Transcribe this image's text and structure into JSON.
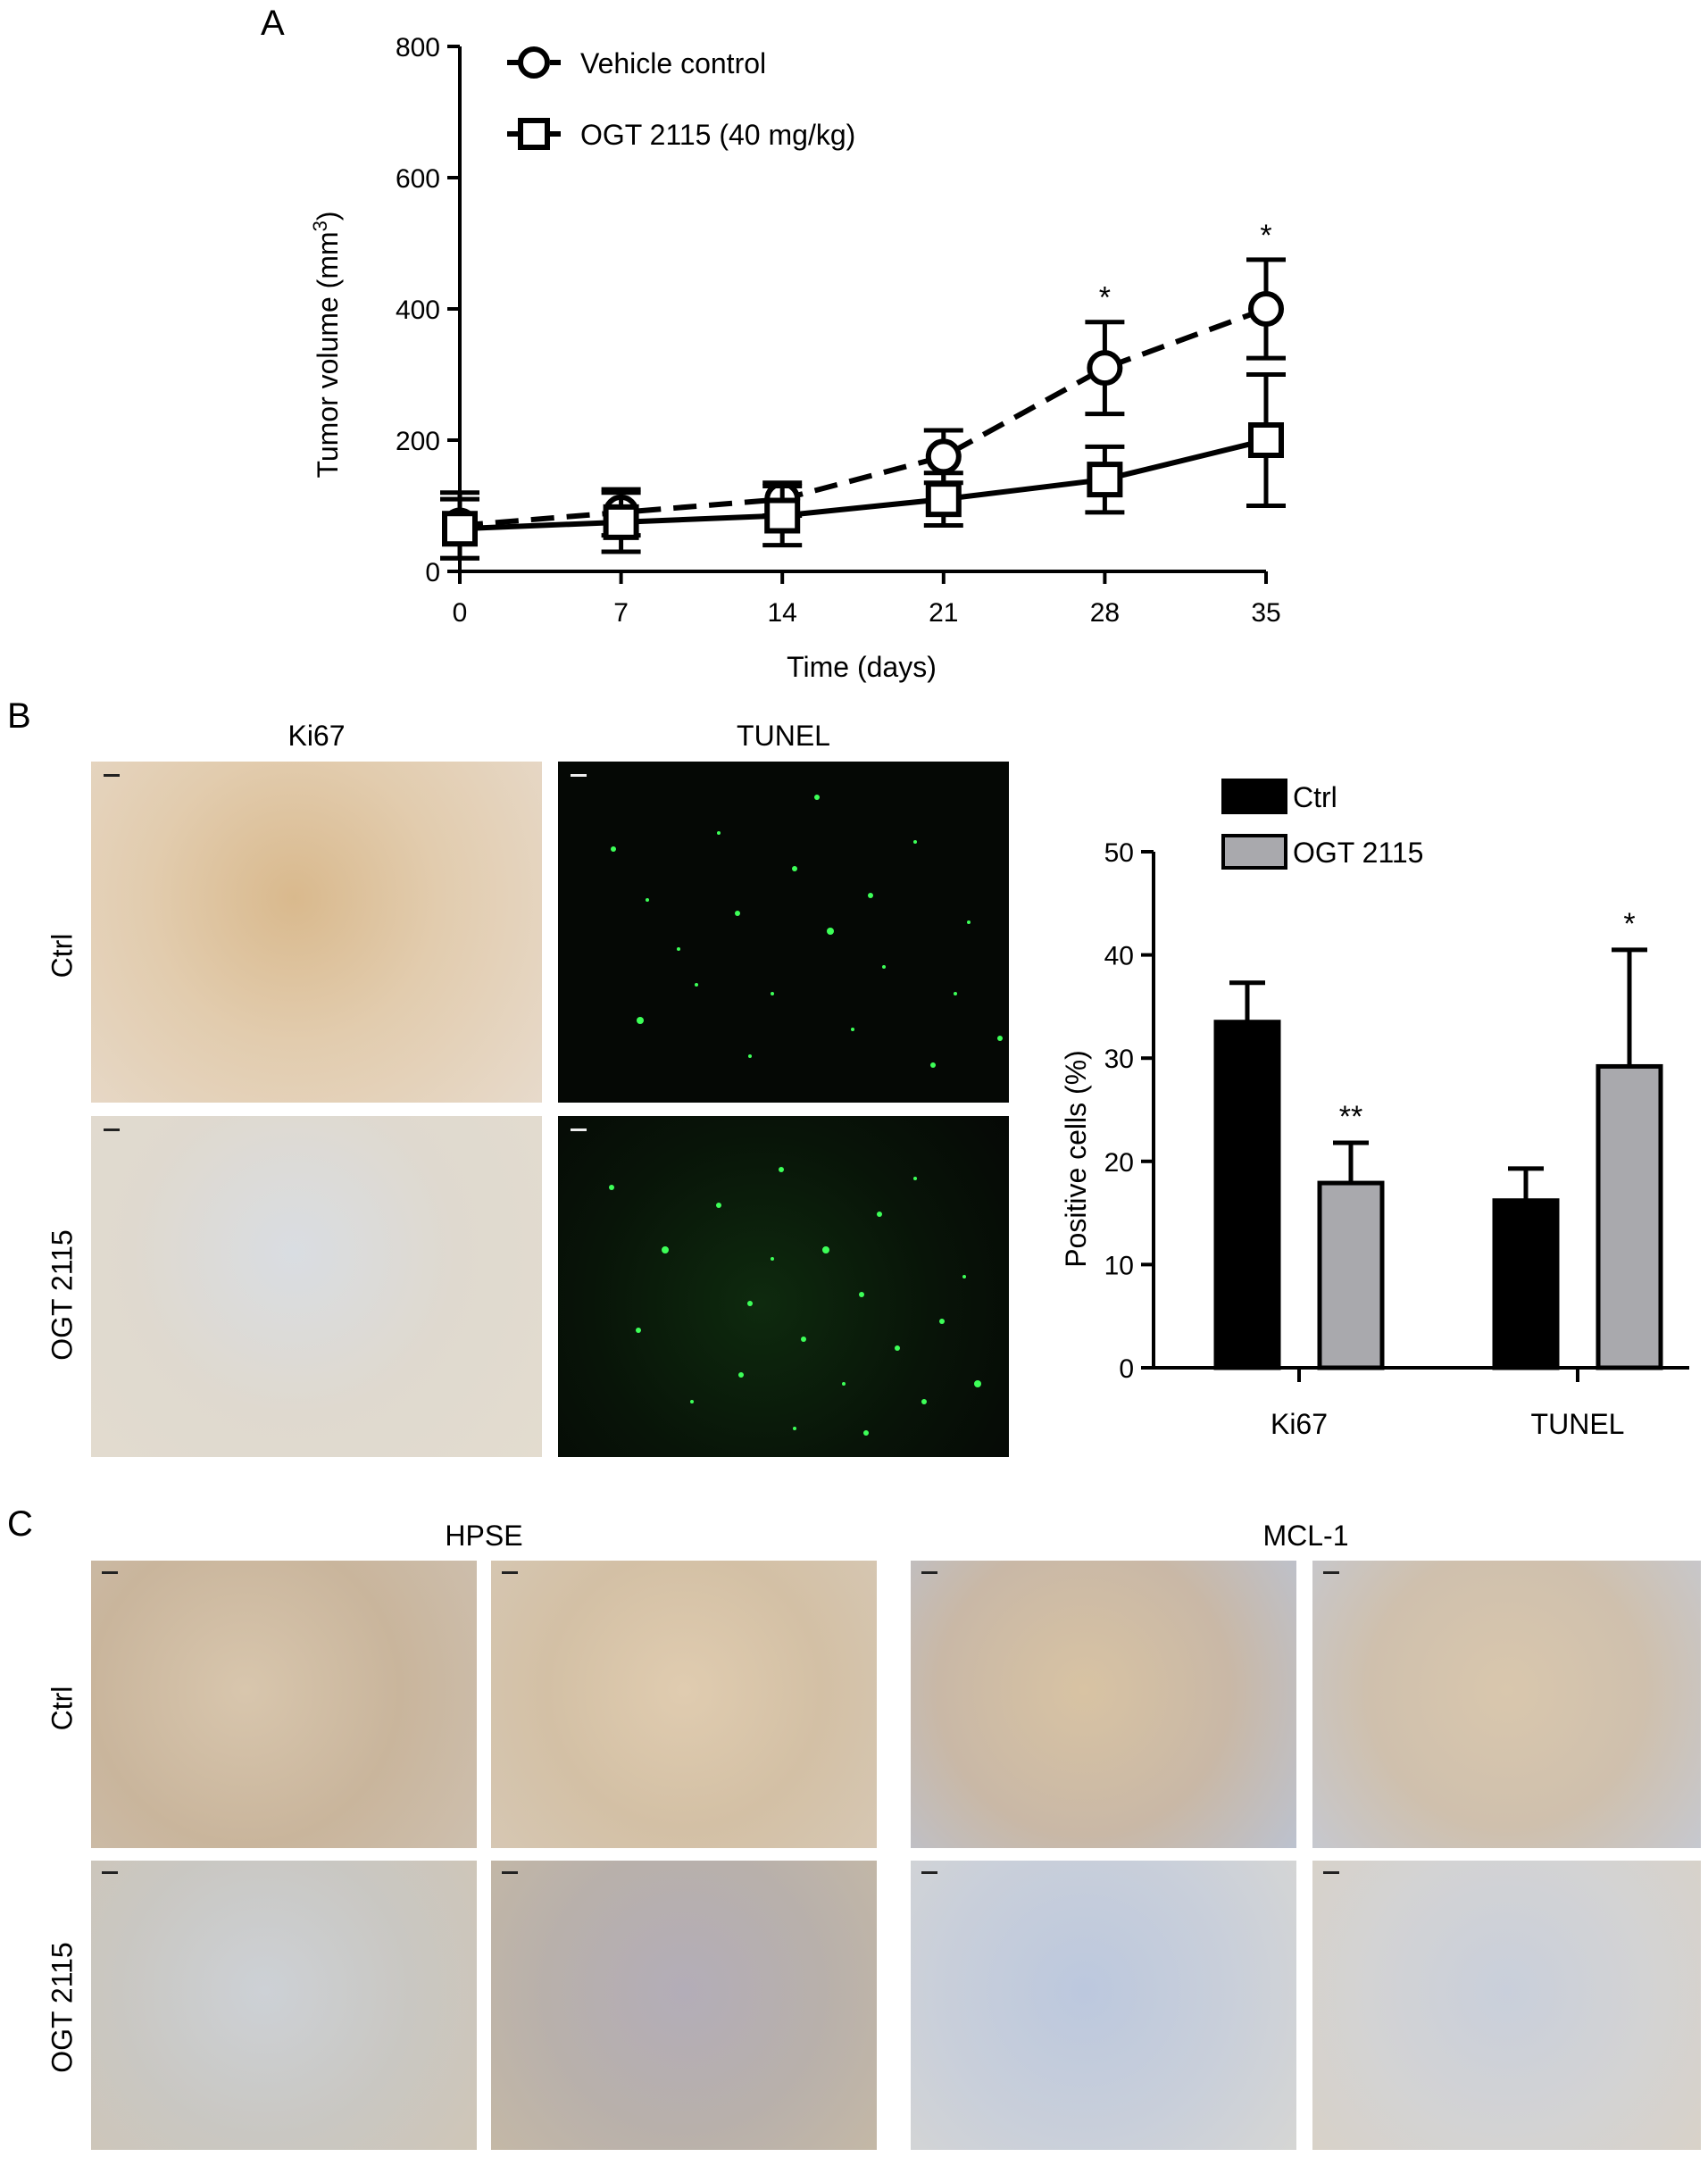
{
  "panels": {
    "a": "A",
    "b": "B",
    "c": "C"
  },
  "chart_data": [
    {
      "type": "line",
      "xlabel": "Time (days)",
      "ylabel": "Tumor volume (mm3)",
      "ylabel_main": "Tumor volume (mm",
      "ylabel_sup": "3",
      "ylabel_close": ")",
      "x": [
        0,
        7,
        14,
        21,
        28,
        35
      ],
      "xlim": [
        0,
        35
      ],
      "ylim": [
        0,
        800
      ],
      "yticks": [
        0,
        200,
        400,
        600,
        800
      ],
      "series": [
        {
          "name": "Vehicle control",
          "marker": "circle",
          "dash": true,
          "values": [
            70,
            90,
            110,
            175,
            310,
            400
          ],
          "err": [
            50,
            35,
            25,
            40,
            70,
            75
          ],
          "significance": [
            "",
            "",
            "",
            "",
            "*",
            "*"
          ]
        },
        {
          "name": "OGT 2115 (40 mg/kg)",
          "marker": "square",
          "dash": false,
          "values": [
            65,
            75,
            85,
            110,
            140,
            200
          ],
          "err": [
            45,
            45,
            45,
            40,
            50,
            100
          ],
          "significance": [
            "",
            "",
            "",
            "",
            "",
            ""
          ]
        }
      ],
      "legend_position": "top-left"
    },
    {
      "type": "bar",
      "ylabel": "Positive cells (%)",
      "categories": [
        "Ki67",
        "TUNEL"
      ],
      "ylim": [
        0,
        50
      ],
      "yticks": [
        0,
        10,
        20,
        30,
        40,
        50
      ],
      "series": [
        {
          "name": "Ctrl",
          "color": "#000000",
          "values": [
            33.5,
            16.2
          ],
          "err": [
            3.8,
            3.1
          ],
          "significance": [
            "",
            ""
          ]
        },
        {
          "name": "OGT 2115",
          "color": "#a9a9ad",
          "values": [
            17.9,
            29.2
          ],
          "err": [
            3.9,
            11.3
          ],
          "significance": [
            "**",
            "*"
          ]
        }
      ],
      "legend_position": "top-left"
    }
  ],
  "micrographs": {
    "b": {
      "columns": [
        "Ki67",
        "TUNEL"
      ],
      "rows": [
        "Ctrl",
        "OGT 2115"
      ]
    },
    "c": {
      "groups": [
        "HPSE",
        "MCL-1"
      ],
      "rows": [
        "Ctrl",
        "OGT 2115"
      ]
    }
  },
  "colors": {
    "ihc_brown": "#c9a57a",
    "ihc_blue": "#9fb3d4",
    "tunel_bg": "#050805",
    "tunel_dot": "#3dff58"
  }
}
